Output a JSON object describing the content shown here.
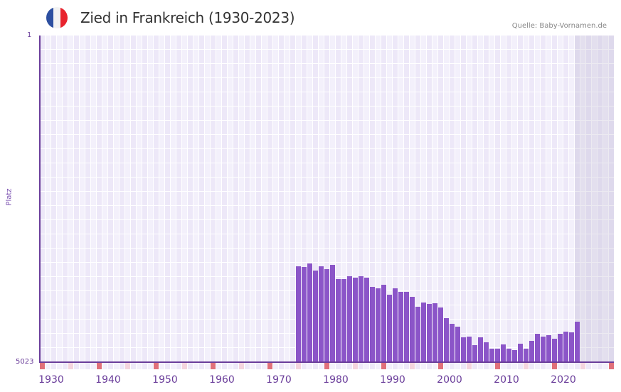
{
  "header": {
    "title": "Zied in Frankreich (1930-2023)",
    "source": "Quelle: Baby-Vornamen.de",
    "flag_colors": [
      "#2d4fa0",
      "#f2f2f2",
      "#e8242e"
    ]
  },
  "colors": {
    "bar": "#8b55c8",
    "axis": "#6a3d9a",
    "grid_a": "#ede8f8",
    "grid_b": "#f3f0fb",
    "tick_major": "#e0707a",
    "tick_minor": "#f4d4de"
  },
  "chart_data": {
    "type": "bar",
    "title": "Zied in Frankreich (1930-2023)",
    "xlabel": "",
    "ylabel": "Platz",
    "y_axis_inverted": true,
    "ylim": [
      1,
      5023
    ],
    "y_tick_labels": [
      "1",
      "5023"
    ],
    "x_tick_labels": [
      "1930",
      "1940",
      "1950",
      "1960",
      "1970",
      "1980",
      "1990",
      "2000",
      "2010",
      "2020"
    ],
    "x_start_year": 1928,
    "x_columns": 101,
    "grey_from_year": 2022,
    "categories": [
      1973,
      1974,
      1975,
      1976,
      1977,
      1978,
      1979,
      1980,
      1981,
      1982,
      1983,
      1984,
      1985,
      1986,
      1987,
      1988,
      1989,
      1990,
      1991,
      1992,
      1993,
      1994,
      1995,
      1996,
      1997,
      1998,
      1999,
      2000,
      2001,
      2002,
      2003,
      2004,
      2005,
      2006,
      2007,
      2008,
      2009,
      2010,
      2011,
      2012,
      2013,
      2014,
      2015,
      2016,
      2017,
      2018,
      2019,
      2020,
      2021,
      2022
    ],
    "values": [
      3549,
      3560,
      3505,
      3614,
      3549,
      3593,
      3527,
      3745,
      3745,
      3702,
      3724,
      3702,
      3724,
      3866,
      3888,
      3833,
      3986,
      3888,
      3942,
      3942,
      4019,
      4172,
      4106,
      4128,
      4117,
      4183,
      4347,
      4434,
      4478,
      4642,
      4631,
      4762,
      4642,
      4718,
      4817,
      4817,
      4751,
      4817,
      4839,
      4740,
      4817,
      4697,
      4587,
      4631,
      4609,
      4664,
      4587,
      4554,
      4565,
      4401
    ],
    "legend": []
  },
  "source_label": "Quelle: Baby-Vornamen.de"
}
